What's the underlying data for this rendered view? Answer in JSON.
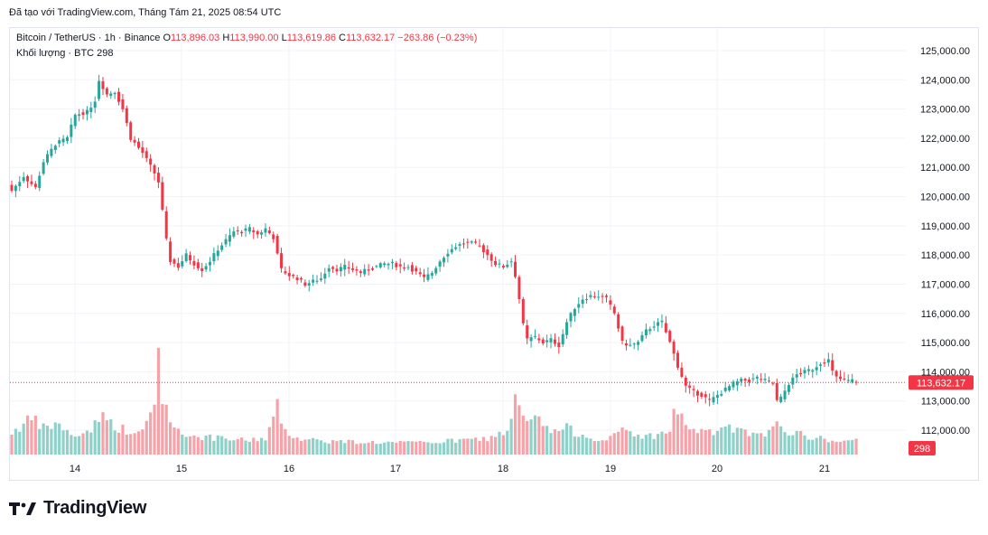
{
  "header": {
    "attribution": "Đã tạo với TradingView.com, Tháng Tám 21, 2025 08:54 UTC"
  },
  "legend": {
    "symbol": "Bitcoin / TetherUS · 1h · Binance",
    "o_label": "O",
    "o_value": "113,896.03",
    "h_label": "H",
    "h_value": "113,990.00",
    "l_label": "L",
    "l_value": "113,619.86",
    "c_label": "C",
    "c_value": "113,632.17",
    "change": "−263.86 (−0.23%)",
    "volume_label": "Khối lượng · BTC",
    "volume_value": "298"
  },
  "brand": {
    "name": "TradingView",
    "logo_icon": "tradingview-logo-icon"
  },
  "colors": {
    "up": "#26a69a",
    "down": "#f23645",
    "vol_up": "#8fd1c9",
    "vol_down": "#f5a3a9",
    "grid": "#f0f3fa",
    "price_line": "#f23645"
  },
  "chart_data": {
    "type": "candlestick",
    "x_tick_labels": [
      "14",
      "15",
      "16",
      "17",
      "18",
      "19",
      "20",
      "21"
    ],
    "y_tick_labels": [
      "125,000.00",
      "124,000.00",
      "123,000.00",
      "122,000.00",
      "121,000.00",
      "120,000.00",
      "119,000.00",
      "118,000.00",
      "117,000.00",
      "116,000.00",
      "115,000.00",
      "114,000.00",
      "113,000.00",
      "112,000.00"
    ],
    "ylim": [
      111000,
      125900
    ],
    "last_price_label": "113,632.17",
    "last_price": 113632.17,
    "last_volume_label": "298",
    "grid": true,
    "price_anchors": [
      [
        0,
        120200
      ],
      [
        3,
        120700
      ],
      [
        6,
        120300
      ],
      [
        8,
        121200
      ],
      [
        11,
        121800
      ],
      [
        14,
        122000
      ],
      [
        16,
        122800
      ],
      [
        19,
        122900
      ],
      [
        21,
        123300
      ],
      [
        22,
        124000
      ],
      [
        24,
        123500
      ],
      [
        26,
        123600
      ],
      [
        28,
        123000
      ],
      [
        30,
        122000
      ],
      [
        33,
        121500
      ],
      [
        36,
        120800
      ],
      [
        37,
        120500
      ],
      [
        38,
        119500
      ],
      [
        39,
        118500
      ],
      [
        40,
        117800
      ],
      [
        42,
        117600
      ],
      [
        44,
        118000
      ],
      [
        46,
        117700
      ],
      [
        48,
        117500
      ],
      [
        50,
        117800
      ],
      [
        52,
        118200
      ],
      [
        54,
        118500
      ],
      [
        56,
        118800
      ],
      [
        58,
        118800
      ],
      [
        60,
        118900
      ],
      [
        62,
        118700
      ],
      [
        64,
        118900
      ],
      [
        66,
        118600
      ],
      [
        67,
        118000
      ],
      [
        68,
        117500
      ],
      [
        70,
        117300
      ],
      [
        72,
        117200
      ],
      [
        74,
        117000
      ],
      [
        76,
        117100
      ],
      [
        78,
        117200
      ],
      [
        80,
        117600
      ],
      [
        82,
        117500
      ],
      [
        84,
        117600
      ],
      [
        86,
        117500
      ],
      [
        88,
        117400
      ],
      [
        90,
        117500
      ],
      [
        92,
        117600
      ],
      [
        94,
        117700
      ],
      [
        96,
        117700
      ],
      [
        98,
        117600
      ],
      [
        100,
        117600
      ],
      [
        102,
        117400
      ],
      [
        104,
        117200
      ],
      [
        106,
        117400
      ],
      [
        108,
        117800
      ],
      [
        110,
        118100
      ],
      [
        112,
        118300
      ],
      [
        114,
        118400
      ],
      [
        116,
        118400
      ],
      [
        118,
        118300
      ],
      [
        120,
        118000
      ],
      [
        122,
        117700
      ],
      [
        124,
        117600
      ],
      [
        126,
        117800
      ],
      [
        127,
        117300
      ],
      [
        128,
        116500
      ],
      [
        129,
        115600
      ],
      [
        130,
        115100
      ],
      [
        132,
        115200
      ],
      [
        134,
        115000
      ],
      [
        136,
        115100
      ],
      [
        138,
        114900
      ],
      [
        140,
        115700
      ],
      [
        142,
        116200
      ],
      [
        144,
        116500
      ],
      [
        146,
        116600
      ],
      [
        148,
        116600
      ],
      [
        150,
        116500
      ],
      [
        152,
        116000
      ],
      [
        153,
        115500
      ],
      [
        154,
        115000
      ],
      [
        156,
        114900
      ],
      [
        158,
        115000
      ],
      [
        160,
        115400
      ],
      [
        162,
        115600
      ],
      [
        164,
        115700
      ],
      [
        166,
        115000
      ],
      [
        168,
        114200
      ],
      [
        170,
        113500
      ],
      [
        172,
        113300
      ],
      [
        174,
        113200
      ],
      [
        176,
        113000
      ],
      [
        178,
        113200
      ],
      [
        180,
        113400
      ],
      [
        182,
        113600
      ],
      [
        184,
        113700
      ],
      [
        186,
        113700
      ],
      [
        188,
        113800
      ],
      [
        190,
        113700
      ],
      [
        192,
        113600
      ],
      [
        193,
        113000
      ],
      [
        194,
        113100
      ],
      [
        196,
        113600
      ],
      [
        198,
        113900
      ],
      [
        200,
        114000
      ],
      [
        202,
        114100
      ],
      [
        204,
        114300
      ],
      [
        206,
        114400
      ],
      [
        207,
        114000
      ],
      [
        208,
        113800
      ],
      [
        210,
        113700
      ],
      [
        212,
        113700
      ],
      [
        213,
        113632
      ]
    ],
    "volume_anchors": [
      [
        0,
        500
      ],
      [
        5,
        800
      ],
      [
        8,
        600
      ],
      [
        12,
        700
      ],
      [
        15,
        400
      ],
      [
        20,
        550
      ],
      [
        22,
        900
      ],
      [
        26,
        650
      ],
      [
        30,
        500
      ],
      [
        32,
        450
      ],
      [
        34,
        700
      ],
      [
        36,
        1100
      ],
      [
        37,
        2400
      ],
      [
        38,
        1200
      ],
      [
        40,
        900
      ],
      [
        42,
        500
      ],
      [
        46,
        420
      ],
      [
        50,
        380
      ],
      [
        55,
        340
      ],
      [
        60,
        320
      ],
      [
        64,
        380
      ],
      [
        66,
        800
      ],
      [
        67,
        1100
      ],
      [
        68,
        600
      ],
      [
        72,
        380
      ],
      [
        80,
        300
      ],
      [
        90,
        280
      ],
      [
        100,
        260
      ],
      [
        110,
        300
      ],
      [
        120,
        360
      ],
      [
        124,
        500
      ],
      [
        126,
        700
      ],
      [
        127,
        1200
      ],
      [
        128,
        1050
      ],
      [
        130,
        700
      ],
      [
        132,
        800
      ],
      [
        134,
        700
      ],
      [
        136,
        500
      ],
      [
        140,
        600
      ],
      [
        142,
        500
      ],
      [
        146,
        400
      ],
      [
        150,
        300
      ],
      [
        152,
        420
      ],
      [
        154,
        600
      ],
      [
        156,
        500
      ],
      [
        160,
        400
      ],
      [
        166,
        500
      ],
      [
        167,
        1150
      ],
      [
        168,
        900
      ],
      [
        170,
        700
      ],
      [
        172,
        560
      ],
      [
        176,
        480
      ],
      [
        178,
        540
      ],
      [
        180,
        640
      ],
      [
        182,
        560
      ],
      [
        186,
        460
      ],
      [
        190,
        400
      ],
      [
        192,
        560
      ],
      [
        193,
        820
      ],
      [
        194,
        680
      ],
      [
        196,
        520
      ],
      [
        200,
        420
      ],
      [
        204,
        360
      ],
      [
        208,
        300
      ],
      [
        210,
        280
      ],
      [
        212,
        310
      ],
      [
        213,
        298
      ]
    ]
  }
}
